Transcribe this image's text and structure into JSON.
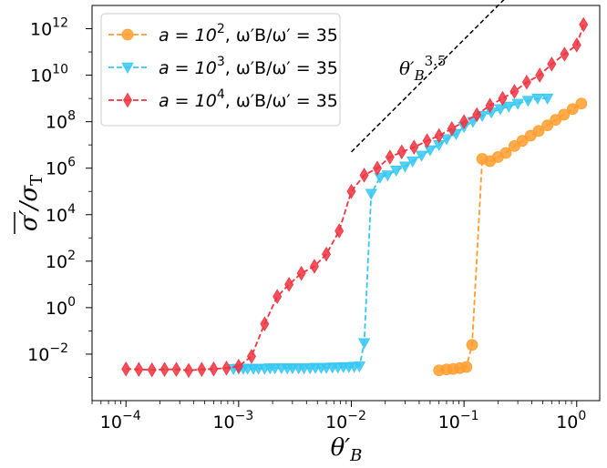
{
  "chart_data": {
    "type": "line",
    "xlabel": "θ′B",
    "ylabel": "σ′/σT",
    "xscale": "log",
    "yscale": "log",
    "xlim": [
      5e-05,
      1.6
    ],
    "ylim": [
      0.0001,
      10000000000000.0
    ],
    "xticks": [
      {
        "value": 0.0001,
        "base": "10",
        "exp": "−4"
      },
      {
        "value": 0.001,
        "base": "10",
        "exp": "−3"
      },
      {
        "value": 0.01,
        "base": "10",
        "exp": "−2"
      },
      {
        "value": 0.1,
        "base": "10",
        "exp": "−1"
      },
      {
        "value": 1,
        "base": "10",
        "exp": "0"
      }
    ],
    "yticks": [
      {
        "value": 0.01,
        "base": "10",
        "exp": "−2"
      },
      {
        "value": 1,
        "base": "10",
        "exp": "0"
      },
      {
        "value": 100,
        "base": "10",
        "exp": "2"
      },
      {
        "value": 10000,
        "base": "10",
        "exp": "4"
      },
      {
        "value": 1000000,
        "base": "10",
        "exp": "6"
      },
      {
        "value": 100000000,
        "base": "10",
        "exp": "8"
      },
      {
        "value": 10000000000,
        "base": "10",
        "exp": "10"
      },
      {
        "value": 1000000000000,
        "base": "10",
        "exp": "12"
      }
    ],
    "legend_position": "top-left",
    "series": [
      {
        "name": "a = 10^2, ω′B/ω′ = 35",
        "legend_a": "a = 10",
        "legend_exp": "2",
        "legend_rest": ", ω′B/ω′ = 35",
        "color": "#ff9d2e",
        "marker": "circle",
        "x": [
          0.06,
          0.07,
          0.08,
          0.092,
          0.105,
          0.118,
          0.145,
          0.17,
          0.2,
          0.235,
          0.28,
          0.33,
          0.39,
          0.46,
          0.55,
          0.65,
          0.77,
          0.92,
          1.1
        ],
        "y": [
          0.002,
          0.0022,
          0.0023,
          0.0025,
          0.0028,
          0.025,
          2500000,
          2000000,
          3000000,
          4500000,
          9000000,
          15000000,
          25000000,
          40000000,
          70000000,
          120000000,
          200000000,
          350000000,
          600000000
        ]
      },
      {
        "name": "a = 10^3, ω′B/ω′ = 35",
        "legend_a": "a = 10",
        "legend_exp": "3",
        "legend_rest": ", ω′B/ω′ = 35",
        "color": "#35c8f2",
        "marker": "triangle-down",
        "x": [
          0.0009,
          0.001,
          0.0011,
          0.0012,
          0.00135,
          0.0015,
          0.0017,
          0.0019,
          0.0021,
          0.0024,
          0.0027,
          0.003,
          0.0034,
          0.0038,
          0.0043,
          0.0048,
          0.0054,
          0.006,
          0.0068,
          0.0076,
          0.0085,
          0.0095,
          0.0106,
          0.0118,
          0.013,
          0.015,
          0.018,
          0.021,
          0.025,
          0.03,
          0.035,
          0.042,
          0.05,
          0.06,
          0.07,
          0.085,
          0.1,
          0.12,
          0.145,
          0.175,
          0.21,
          0.25,
          0.3,
          0.37,
          0.45,
          0.55
        ],
        "y": [
          0.0023,
          0.0024,
          0.0024,
          0.0024,
          0.0024,
          0.0024,
          0.0024,
          0.0025,
          0.0025,
          0.0025,
          0.0025,
          0.0025,
          0.0025,
          0.0025,
          0.0025,
          0.0026,
          0.0026,
          0.0026,
          0.0027,
          0.0027,
          0.0028,
          0.0028,
          0.0029,
          0.003,
          0.03,
          80000,
          400000,
          500000,
          800000,
          1200000,
          2000000,
          3500000,
          6000000,
          10000000,
          18000000,
          30000000,
          60000000,
          100000000,
          180000000,
          250000000,
          350000000,
          450000000,
          600000000,
          800000000,
          1000000000,
          1000000000
        ]
      },
      {
        "name": "a = 10^4, ω′B/ω′ = 35",
        "legend_a": "a = 10",
        "legend_exp": "4",
        "legend_rest": ", ω′B/ω′ = 35",
        "color": "#ef3440",
        "marker": "diamond",
        "x": [
          0.0001,
          0.00013,
          0.00017,
          0.00022,
          0.00028,
          0.00036,
          0.00047,
          0.0006,
          0.00078,
          0.001,
          0.0013,
          0.0017,
          0.0022,
          0.0028,
          0.0036,
          0.0047,
          0.006,
          0.0078,
          0.01,
          0.013,
          0.017,
          0.022,
          0.028,
          0.036,
          0.047,
          0.06,
          0.078,
          0.1,
          0.13,
          0.17,
          0.22,
          0.28,
          0.36,
          0.47,
          0.6,
          0.78,
          1.0,
          1.15
        ],
        "y": [
          0.0023,
          0.0022,
          0.0021,
          0.0022,
          0.0022,
          0.002,
          0.0022,
          0.0023,
          0.0025,
          0.003,
          0.008,
          0.2,
          3.0,
          10.0,
          30.0,
          60.0,
          200.0,
          2000.0,
          100000.0,
          500000.0,
          1000000.0,
          3000000.0,
          5000000.0,
          8000000.0,
          15000000.0,
          25000000.0,
          50000000.0,
          100000000.0,
          200000000.0,
          500000000.0,
          1000000000.0,
          2000000000.0,
          5000000000.0,
          10000000000.0,
          30000000000.0,
          80000000000.0,
          200000000000.0,
          1500000000000.0
        ]
      }
    ],
    "guide_line": {
      "x": [
        0.01,
        0.3
      ],
      "y": [
        5000000,
        70000000000000
      ],
      "label": "θ′B3.5",
      "label_main": "θ′",
      "label_sub": "B",
      "label_sup": "3.5"
    }
  }
}
